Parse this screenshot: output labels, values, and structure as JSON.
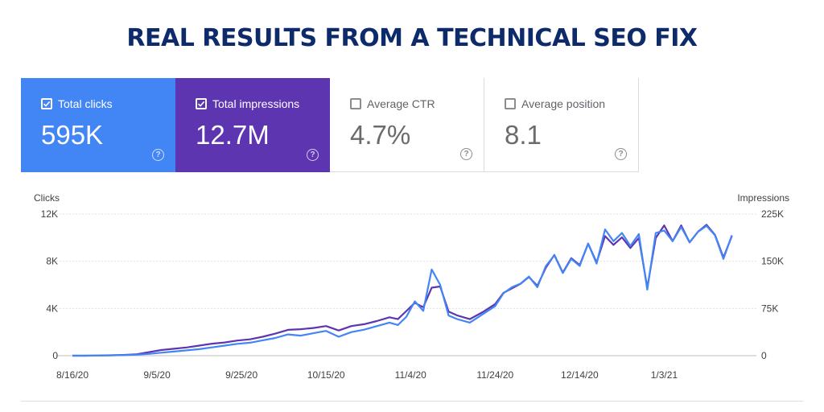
{
  "headline": "REAL RESULTS FROM A TECHNICAL SEO FIX",
  "colors": {
    "headline": "#0d2a6b",
    "clicks": "#4285f4",
    "impressions": "#5e35b1",
    "grid": "#e0e0e0",
    "card_off_bg": "#ffffff"
  },
  "icons": {
    "checkbox": "checkbox-icon",
    "help": "help-circle-icon"
  },
  "metrics": [
    {
      "label": "Total clicks",
      "value": "595K",
      "checked": true,
      "help": "?"
    },
    {
      "label": "Total impressions",
      "value": "12.7M",
      "checked": true,
      "help": "?"
    },
    {
      "label": "Average CTR",
      "value": "4.7%",
      "checked": false,
      "help": "?"
    },
    {
      "label": "Average position",
      "value": "8.1",
      "checked": false,
      "help": "?"
    }
  ],
  "chart_data": {
    "type": "line",
    "x_axis_type": "date",
    "x": [
      "2020-08-16",
      "2020-08-19",
      "2020-08-22",
      "2020-08-25",
      "2020-08-28",
      "2020-08-31",
      "2020-09-03",
      "2020-09-06",
      "2020-09-09",
      "2020-09-12",
      "2020-09-15",
      "2020-09-18",
      "2020-09-21",
      "2020-09-24",
      "2020-09-27",
      "2020-09-30",
      "2020-10-03",
      "2020-10-06",
      "2020-10-09",
      "2020-10-12",
      "2020-10-15",
      "2020-10-18",
      "2020-10-21",
      "2020-10-24",
      "2020-10-27",
      "2020-10-30",
      "2020-11-01",
      "2020-11-03",
      "2020-11-05",
      "2020-11-07",
      "2020-11-09",
      "2020-11-11",
      "2020-11-13",
      "2020-11-15",
      "2020-11-18",
      "2020-11-21",
      "2020-11-24",
      "2020-11-26",
      "2020-11-28",
      "2020-11-30",
      "2020-12-02",
      "2020-12-04",
      "2020-12-06",
      "2020-12-08",
      "2020-12-10",
      "2020-12-12",
      "2020-12-14",
      "2020-12-16",
      "2020-12-18",
      "2020-12-20",
      "2020-12-22",
      "2020-12-24",
      "2020-12-26",
      "2020-12-28",
      "2020-12-30",
      "2021-01-01",
      "2021-01-03",
      "2021-01-05",
      "2021-01-07",
      "2021-01-09",
      "2021-01-11",
      "2021-01-13",
      "2021-01-15",
      "2021-01-17",
      "2021-01-19"
    ],
    "series": [
      {
        "name": "Clicks",
        "axis": "left",
        "color": "#4285f4",
        "values": [
          0,
          0,
          10,
          30,
          50,
          80,
          150,
          250,
          350,
          450,
          550,
          700,
          850,
          1000,
          1100,
          1300,
          1500,
          1800,
          1700,
          1900,
          2100,
          1600,
          2000,
          2200,
          2500,
          2800,
          2600,
          3300,
          4600,
          3800,
          7300,
          6000,
          3400,
          3100,
          2800,
          3500,
          4200,
          5300,
          5800,
          6100,
          6700,
          5800,
          7600,
          8500,
          7000,
          8200,
          7600,
          9500,
          7800,
          10700,
          9700,
          10400,
          9300,
          10300,
          5600,
          10400,
          10600,
          9700,
          10900,
          9600,
          10500,
          11000,
          10200,
          8200,
          10200
        ]
      },
      {
        "name": "Impressions",
        "axis": "right",
        "color": "#5e35b1",
        "values": [
          0,
          0,
          300,
          700,
          1100,
          2000,
          5500,
          9000,
          11000,
          13000,
          16000,
          19000,
          21000,
          24000,
          26000,
          30000,
          35000,
          41000,
          42000,
          44000,
          47000,
          40000,
          47000,
          50000,
          55000,
          61000,
          58000,
          71000,
          84000,
          77000,
          108000,
          110000,
          70000,
          64000,
          58000,
          69000,
          82000,
          100000,
          107000,
          114000,
          125000,
          111000,
          140000,
          160000,
          132000,
          155000,
          144000,
          178000,
          148000,
          190000,
          176000,
          188000,
          171000,
          187000,
          108000,
          187000,
          207000,
          182000,
          207000,
          180000,
          197000,
          208000,
          192000,
          156000,
          190000
        ]
      }
    ],
    "x_ticks": [
      "8/16/20",
      "9/5/20",
      "9/25/20",
      "10/15/20",
      "11/4/20",
      "11/24/20",
      "12/14/20",
      "1/3/21"
    ],
    "y_left": {
      "label": "Clicks",
      "ticks": [
        "0",
        "4K",
        "8K",
        "12K"
      ],
      "range": [
        0,
        12000
      ]
    },
    "y_right": {
      "label": "Impressions",
      "ticks": [
        "0",
        "75K",
        "150K",
        "225K"
      ],
      "range": [
        0,
        225000
      ]
    },
    "grid": true,
    "legend": "none"
  }
}
